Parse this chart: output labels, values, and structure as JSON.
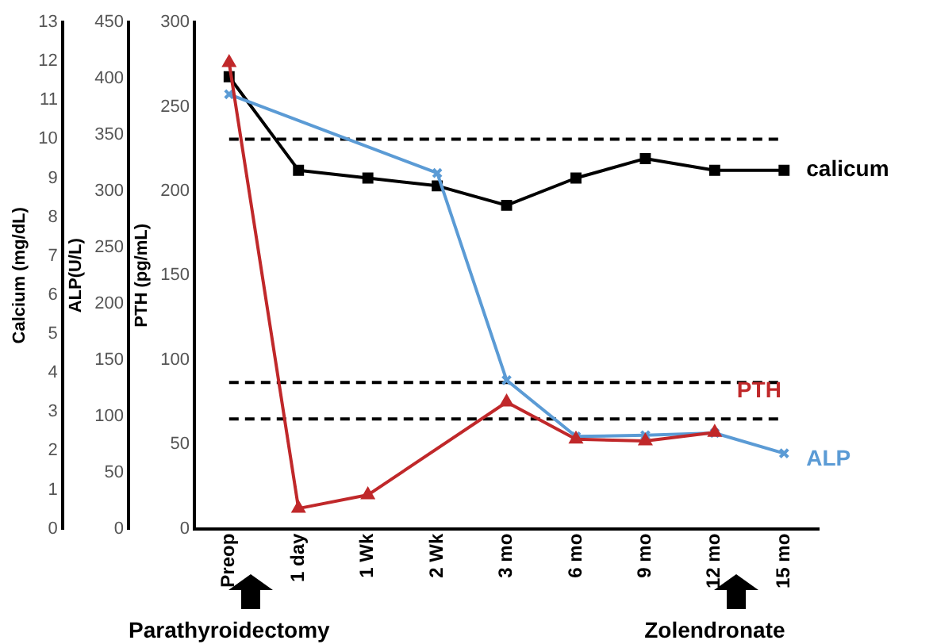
{
  "chart_data": {
    "type": "line",
    "categories": [
      "Preop",
      "1 day",
      "1 Wk",
      "2 Wk",
      "3 mo",
      "6 mo",
      "9 mo",
      "12 mo",
      "15 mo"
    ],
    "series": [
      {
        "name": "calicum",
        "color": "#000000",
        "marker": "square",
        "axis": "y3",
        "values": [
          11.6,
          9.2,
          9.0,
          8.8,
          8.3,
          9.0,
          9.5,
          9.2,
          9.2
        ]
      },
      {
        "name": "ALP",
        "color": "#5b9bd5",
        "marker": "cross",
        "axis": "y2",
        "values": [
          386,
          null,
          null,
          316,
          132,
          82,
          83,
          85,
          67
        ]
      },
      {
        "name": "PTH",
        "color": "#c0282a",
        "marker": "triangle",
        "values": [
          276,
          12,
          20,
          null,
          75,
          53,
          52,
          57,
          null
        ]
      }
    ],
    "ylabel": "PTH (pg/mL)",
    "ylim": [
      0,
      300
    ],
    "yticks": [
      0,
      50,
      100,
      150,
      200,
      250,
      300
    ],
    "y2label": "ALP(U/L)",
    "y2lim": [
      0,
      450
    ],
    "y2ticks": [
      0,
      50,
      100,
      150,
      200,
      250,
      300,
      350,
      400,
      450
    ],
    "y3label": "Calcium (mg/dL)",
    "y3lim": [
      0,
      13
    ],
    "y3ticks": [
      0,
      1,
      2,
      3,
      4,
      5,
      6,
      7,
      8,
      9,
      10,
      11,
      12,
      13
    ],
    "ref_lines": [
      {
        "axis": "y3",
        "value": 10,
        "color": "#000000",
        "line_style": "dashed"
      },
      {
        "axis": "y2",
        "value": 130,
        "color": "#000000",
        "line_style": "dashed"
      },
      {
        "axis": "y",
        "value": 65,
        "color": "#000000",
        "line_style": "dashed"
      }
    ],
    "annotations": [
      "Parathyroidectomy",
      "Zolendronate"
    ]
  }
}
